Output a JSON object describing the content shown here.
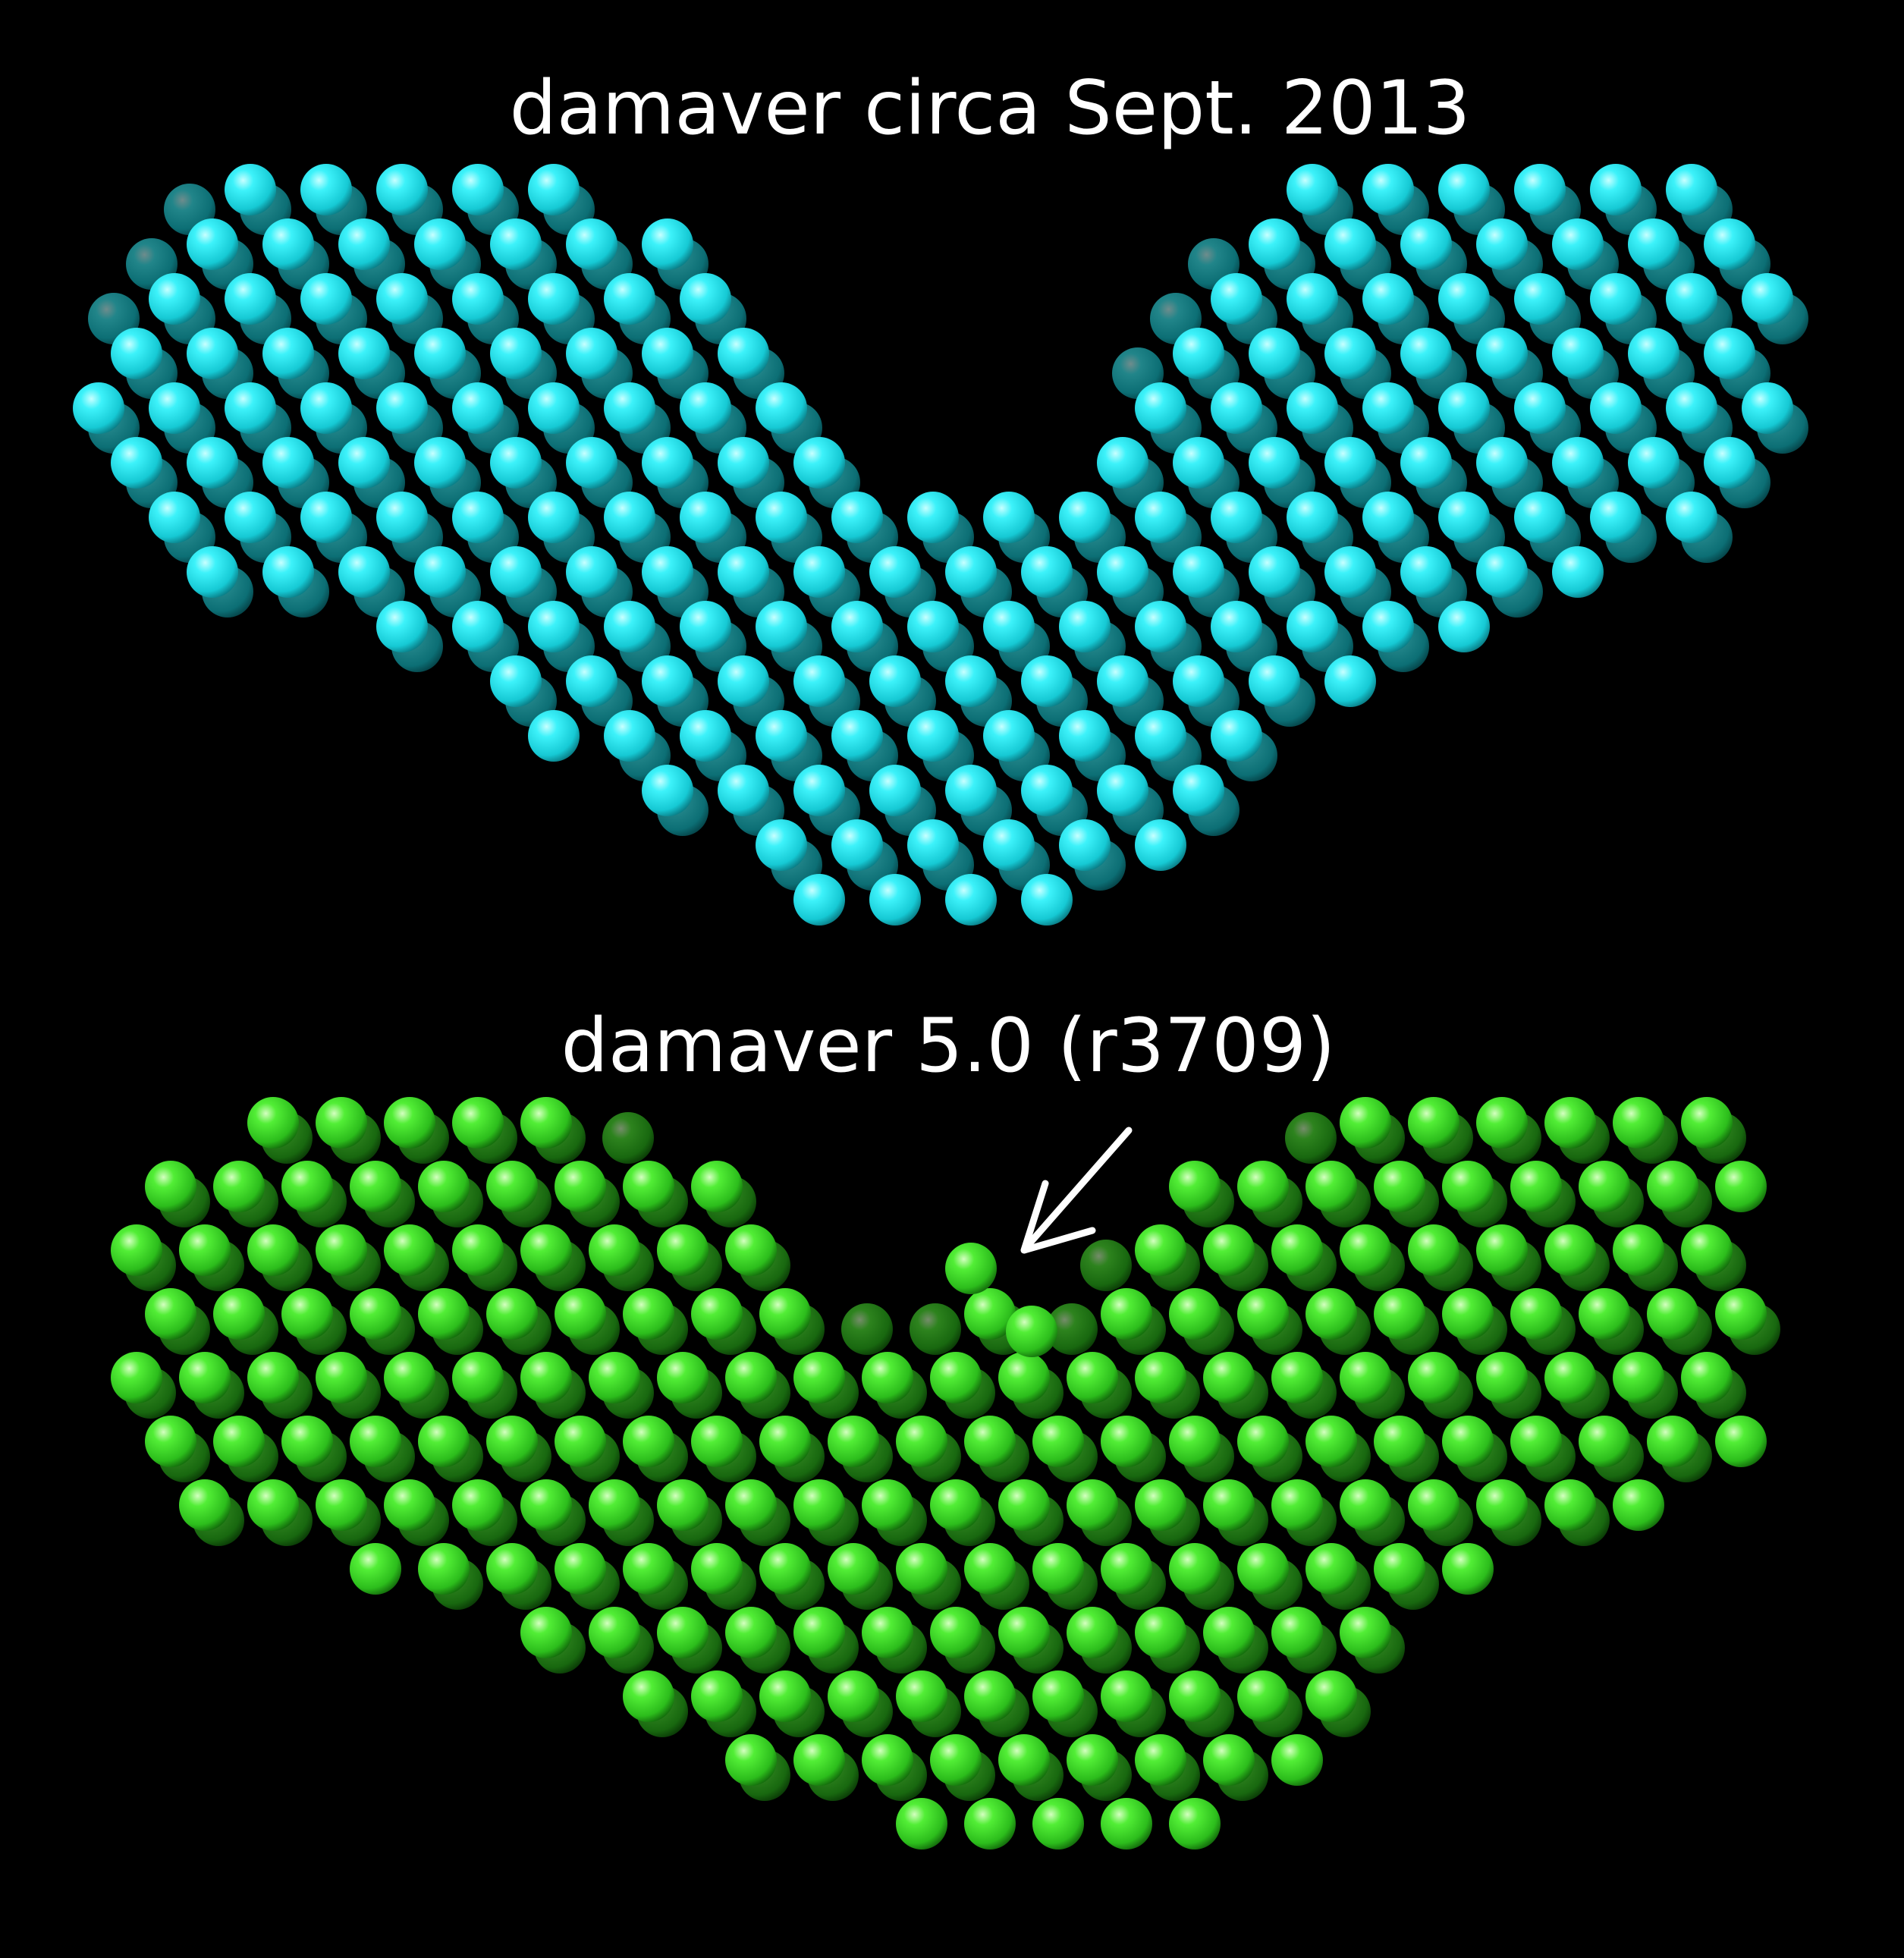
{
  "panels": [
    {
      "title": "damaver circa Sept. 2013",
      "bead_color": "#22e6f0",
      "bead_color_highlight": "#c8ffff",
      "bead_color_shadow": "#0a7f88",
      "subject": "cyan-bead-model"
    },
    {
      "title": "damaver 5.0 (r3709)",
      "bead_color": "#3de02a",
      "bead_color_highlight": "#d4ffc0",
      "bead_color_shadow": "#146e0c",
      "subject": "green-bead-model"
    }
  ],
  "annotation": {
    "arrow_color": "#ffffff",
    "icon": "arrow-down-left-icon"
  },
  "background": "#000000"
}
